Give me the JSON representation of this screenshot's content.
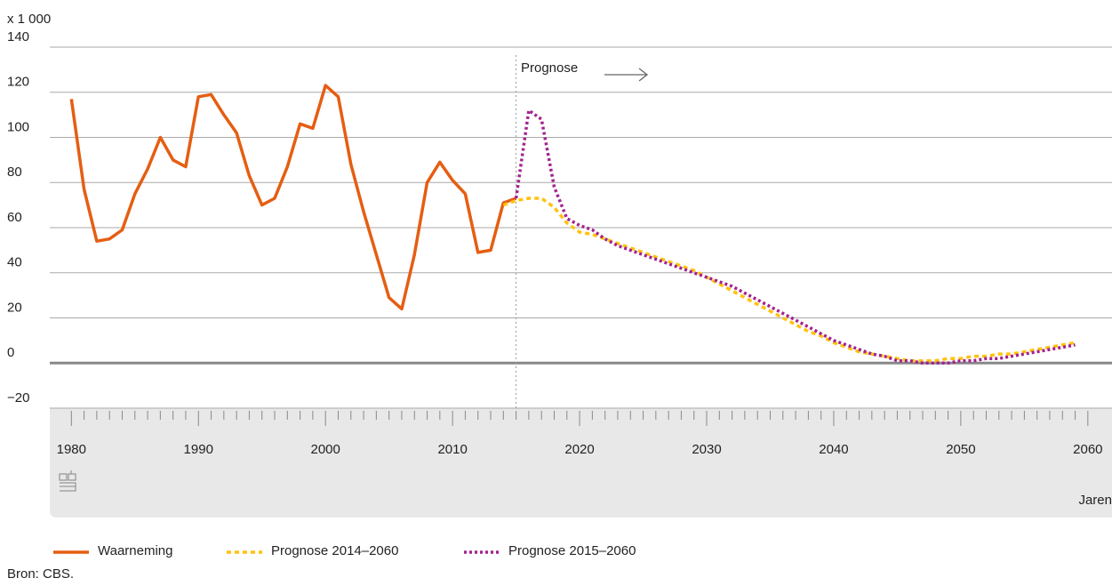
{
  "chart_data": {
    "type": "line",
    "y_unit_label": "x 1 000",
    "x_label": "Jaren",
    "annotation": "Prognose",
    "prognosis_start": 2015,
    "source": "Bron: CBS.",
    "xlim": [
      1978.3,
      2061.9
    ],
    "xticks": [
      1980,
      1990,
      2000,
      2010,
      2020,
      2030,
      2040,
      2050,
      2060
    ],
    "minor_ticks_per_interval": 10,
    "ylim": [
      -20,
      140
    ],
    "yticks": [
      {
        "value": -20,
        "label": "−20"
      },
      0,
      20,
      40,
      60,
      80,
      100,
      120,
      140
    ],
    "grid": true,
    "x": [
      1980,
      1981,
      1982,
      1983,
      1984,
      1985,
      1986,
      1987,
      1988,
      1989,
      1990,
      1991,
      1992,
      1993,
      1994,
      1995,
      1996,
      1997,
      1998,
      1999,
      2000,
      2001,
      2002,
      2003,
      2004,
      2005,
      2006,
      2007,
      2008,
      2009,
      2010,
      2011,
      2012,
      2013,
      2014,
      2015,
      2016,
      2017,
      2018,
      2019,
      2020,
      2021,
      2022,
      2023,
      2024,
      2025,
      2026,
      2027,
      2028,
      2029,
      2030,
      2031,
      2032,
      2033,
      2034,
      2035,
      2036,
      2037,
      2038,
      2039,
      2040,
      2041,
      2042,
      2043,
      2044,
      2045,
      2046,
      2047,
      2048,
      2049,
      2050,
      2051,
      2052,
      2053,
      2054,
      2055,
      2056,
      2057,
      2058,
      2059
    ],
    "series": [
      {
        "name": "Waarneming",
        "color": "#e55e12",
        "dash": "none",
        "values": [
          117,
          77,
          54,
          55,
          59,
          75,
          86,
          100,
          90,
          87,
          118,
          119,
          110,
          102,
          83,
          70,
          73,
          87,
          106,
          104,
          123,
          118,
          88,
          67,
          48,
          29,
          24,
          48,
          80,
          89,
          81,
          75,
          49,
          50,
          71,
          73,
          null,
          null,
          null,
          null,
          null,
          null,
          null,
          null,
          null,
          null,
          null,
          null,
          null,
          null,
          null,
          null,
          null,
          null,
          null,
          null,
          null,
          null,
          null,
          null,
          null,
          null,
          null,
          null,
          null,
          null,
          null,
          null,
          null,
          null,
          null,
          null,
          null,
          null,
          null,
          null,
          null,
          null,
          null,
          null
        ]
      },
      {
        "name": "Prognose 2014–2060",
        "color": "#ffc20e",
        "dash": "5,4",
        "values": [
          null,
          null,
          null,
          null,
          null,
          null,
          null,
          null,
          null,
          null,
          null,
          null,
          null,
          null,
          null,
          null,
          null,
          null,
          null,
          null,
          null,
          null,
          null,
          null,
          null,
          null,
          null,
          null,
          null,
          null,
          null,
          null,
          null,
          null,
          70,
          72,
          73,
          73,
          69,
          62,
          58,
          57,
          55,
          53,
          51,
          49,
          47,
          45,
          43,
          41,
          38,
          35,
          32,
          29,
          26,
          23,
          20,
          17,
          14,
          12,
          9,
          7,
          5,
          4,
          3,
          2,
          1,
          1,
          1,
          2,
          2,
          3,
          3,
          4,
          4,
          5,
          6,
          7,
          8,
          9
        ]
      },
      {
        "name": "Prognose 2015–2060",
        "color": "#a3228f",
        "dash": "3,3",
        "values": [
          null,
          null,
          null,
          null,
          null,
          null,
          null,
          null,
          null,
          null,
          null,
          null,
          null,
          null,
          null,
          null,
          null,
          null,
          null,
          null,
          null,
          null,
          null,
          null,
          null,
          null,
          null,
          null,
          null,
          null,
          null,
          null,
          null,
          null,
          null,
          73,
          112,
          108,
          78,
          64,
          61,
          59,
          55,
          52,
          50,
          48,
          46,
          44,
          42,
          40,
          38,
          36,
          34,
          31,
          28,
          25,
          22,
          19,
          16,
          13,
          10,
          8,
          6,
          4,
          3,
          1,
          1,
          0,
          0,
          0,
          1,
          1,
          2,
          2,
          3,
          4,
          5,
          6,
          7,
          8
        ]
      }
    ]
  }
}
